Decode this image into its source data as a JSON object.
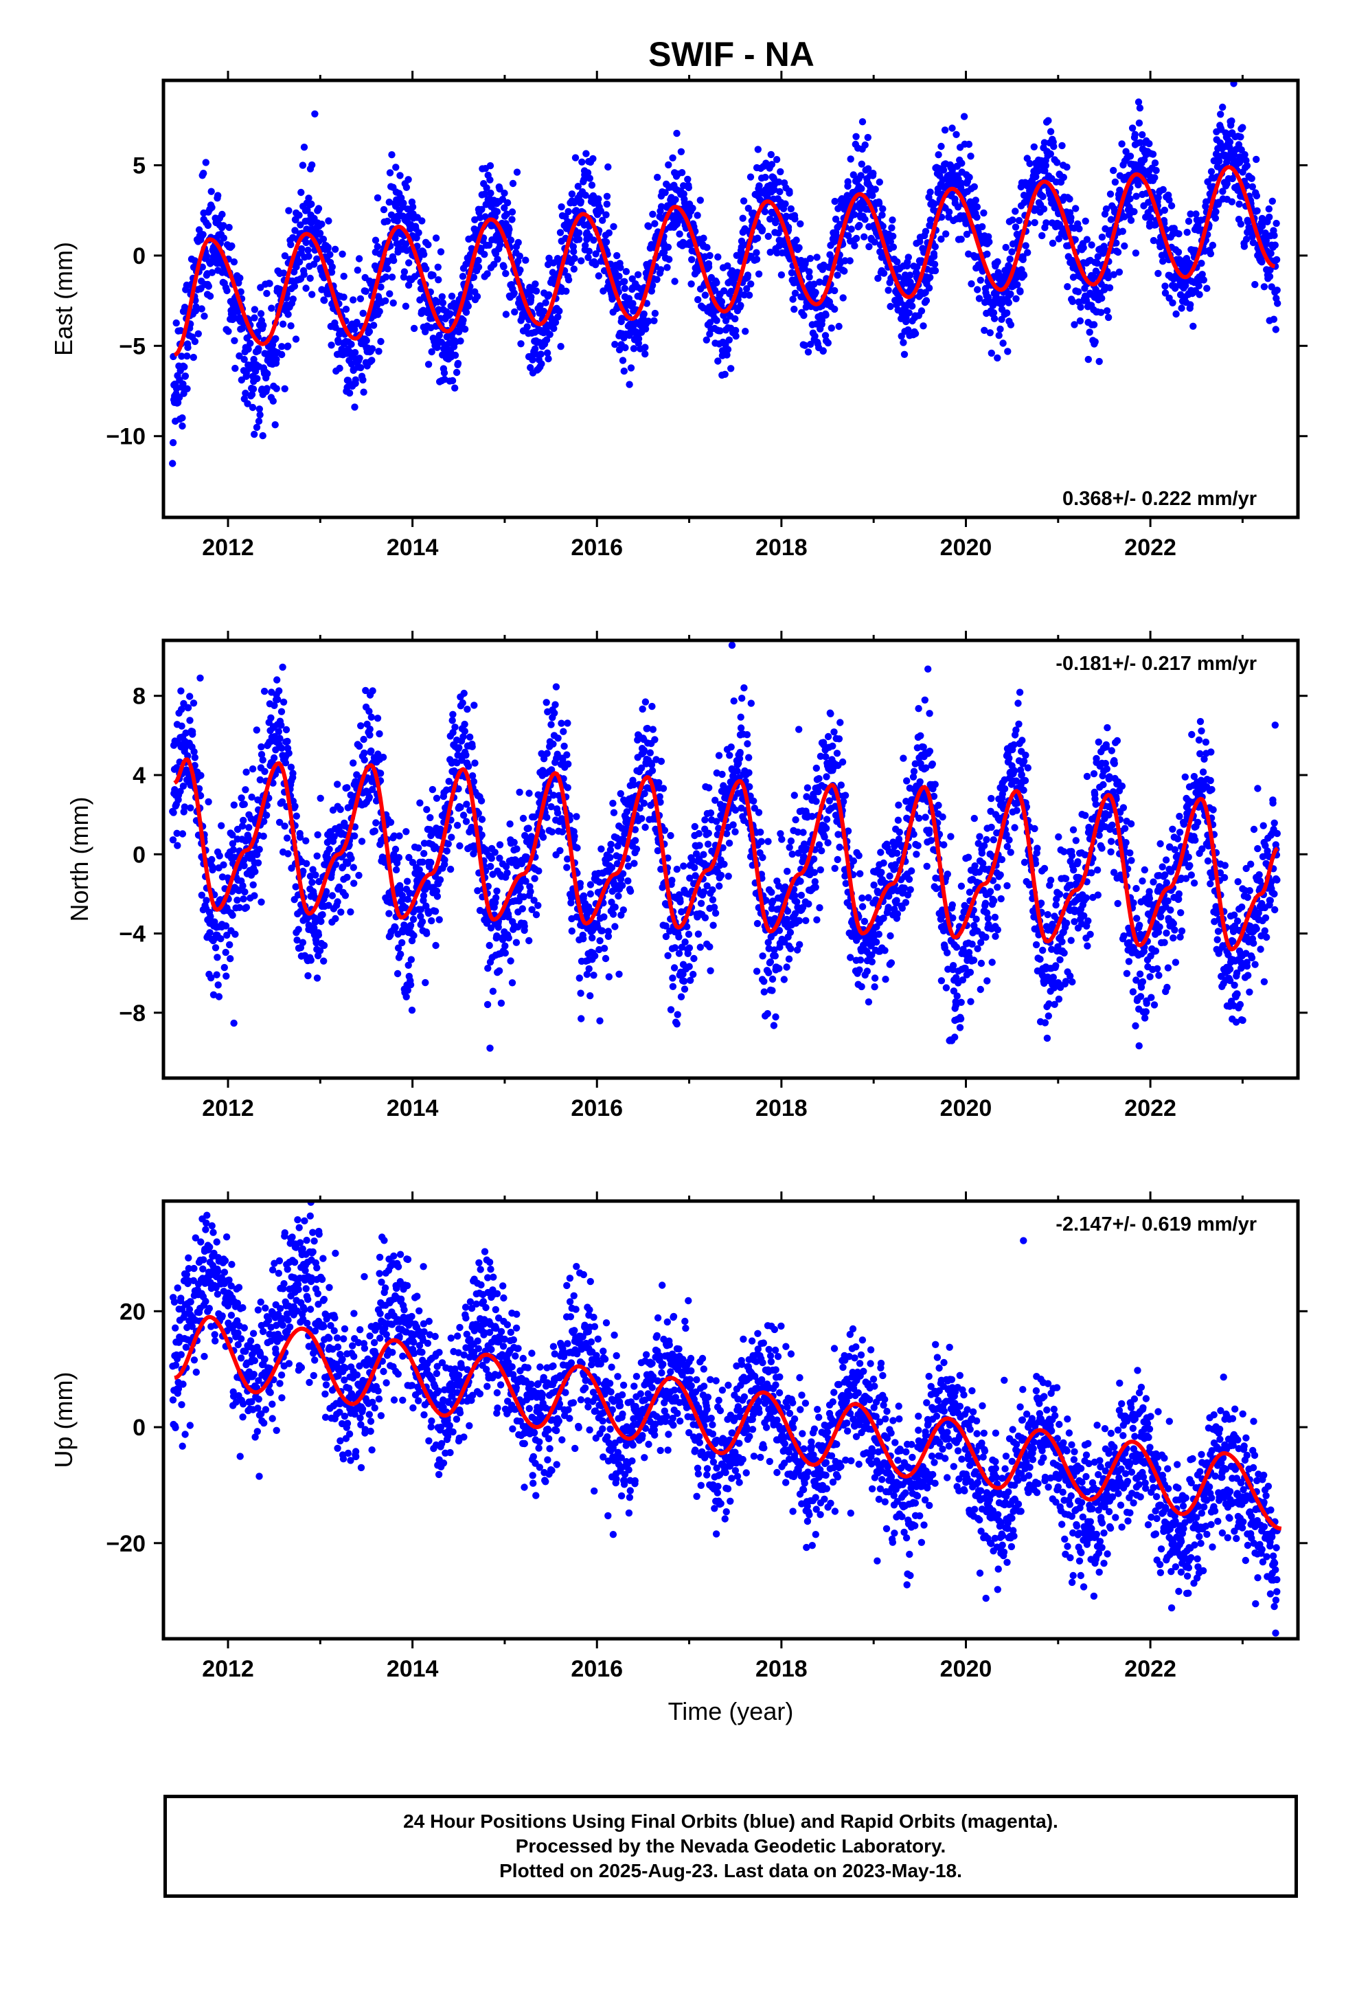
{
  "title": "SWIF - NA",
  "chart_data": [
    {
      "type": "scatter",
      "component": "East",
      "ylabel": "East (mm)",
      "xlabel": "",
      "xlim": [
        2011.3,
        2023.6
      ],
      "ylim": [
        -14.5,
        9.7
      ],
      "yticks": [
        5,
        0,
        -5,
        -10
      ],
      "ytick_labels": [
        "5",
        "0",
        "−5",
        "−10"
      ],
      "xticks": [
        2012,
        2014,
        2016,
        2018,
        2020,
        2022
      ],
      "xtick_labels": [
        "2012",
        "2014",
        "2016",
        "2018",
        "2020",
        "2022"
      ],
      "rate_label": "0.368+/- 0.222 mm/yr",
      "rate_position": "bottom-right",
      "series": [
        {
          "name": "24 Hour Positions (Final Orbits)",
          "color": "#0000ff",
          "style": "points",
          "amplitude": [
            4.6,
            4.2,
            3.6,
            3.0,
            2.8,
            2.7,
            2.6,
            2.6,
            2.7,
            2.7,
            2.8,
            2.9,
            3.0
          ],
          "noise": 1.3
        },
        {
          "name": "Model fit",
          "color": "#ff0000",
          "style": "line",
          "x": [
            2011.42,
            2011.8,
            2012.38,
            2012.85,
            2013.38,
            2013.85,
            2014.38,
            2014.85,
            2015.38,
            2015.85,
            2016.38,
            2016.85,
            2017.38,
            2017.85,
            2018.38,
            2018.85,
            2019.38,
            2019.85,
            2020.38,
            2020.85,
            2021.38,
            2021.85,
            2022.38,
            2022.85,
            2023.35
          ],
          "y": [
            -5.5,
            0.9,
            -4.9,
            1.2,
            -4.6,
            1.6,
            -4.2,
            2.0,
            -3.8,
            2.3,
            -3.5,
            2.7,
            -3.1,
            3.0,
            -2.7,
            3.4,
            -2.3,
            3.7,
            -1.9,
            4.1,
            -1.6,
            4.5,
            -1.2,
            4.9,
            -0.6
          ]
        }
      ]
    },
    {
      "type": "scatter",
      "component": "North",
      "ylabel": "North (mm)",
      "xlabel": "",
      "xlim": [
        2011.3,
        2023.6
      ],
      "ylim": [
        -11.3,
        10.8
      ],
      "yticks": [
        8,
        4,
        0,
        -4,
        -8
      ],
      "ytick_labels": [
        "8",
        "4",
        "0",
        "−4",
        "−8"
      ],
      "xticks": [
        2012,
        2014,
        2016,
        2018,
        2020,
        2022
      ],
      "xtick_labels": [
        "2012",
        "2014",
        "2016",
        "2018",
        "2020",
        "2022"
      ],
      "rate_label": "-0.181+/- 0.217 mm/yr",
      "rate_position": "top-right",
      "series": [
        {
          "name": "24 Hour Positions (Final Orbits)",
          "color": "#0000ff",
          "style": "points",
          "amplitude": [
            3.6,
            3.4,
            3.3,
            3.3,
            3.5,
            3.6,
            3.8,
            3.9,
            3.9,
            3.9,
            3.8,
            3.8,
            3.7
          ],
          "noise": 1.5
        },
        {
          "name": "Model fit",
          "color": "#ff0000",
          "style": "line",
          "x": [
            2011.42,
            2011.55,
            2011.88,
            2012.2,
            2012.55,
            2012.88,
            2013.2,
            2013.55,
            2013.88,
            2014.2,
            2014.55,
            2014.88,
            2015.2,
            2015.55,
            2015.88,
            2016.2,
            2016.55,
            2016.88,
            2017.2,
            2017.55,
            2017.88,
            2018.2,
            2018.55,
            2018.88,
            2019.2,
            2019.55,
            2019.88,
            2020.2,
            2020.55,
            2020.88,
            2021.2,
            2021.55,
            2021.88,
            2022.2,
            2022.55,
            2022.88,
            2023.2,
            2023.38
          ],
          "y": [
            3.6,
            4.8,
            -2.8,
            0.2,
            4.6,
            -3.0,
            0.0,
            4.5,
            -3.2,
            -1.0,
            4.3,
            -3.3,
            -1.0,
            4.1,
            -3.5,
            -1.0,
            3.9,
            -3.7,
            -0.8,
            3.7,
            -3.9,
            -1.0,
            3.5,
            -4.0,
            -1.5,
            3.4,
            -4.2,
            -1.5,
            3.2,
            -4.4,
            -1.8,
            3.0,
            -4.6,
            -1.7,
            2.8,
            -4.8,
            -2.0,
            0.3
          ]
        }
      ]
    },
    {
      "type": "scatter",
      "component": "Up",
      "ylabel": "Up (mm)",
      "xlabel": "Time (year)",
      "xlim": [
        2011.3,
        2023.6
      ],
      "ylim": [
        -36.5,
        39
      ],
      "yticks": [
        20,
        0,
        -20
      ],
      "ytick_labels": [
        "20",
        "0",
        "−20"
      ],
      "xticks": [
        2012,
        2014,
        2016,
        2018,
        2020,
        2022
      ],
      "xtick_labels": [
        "2012",
        "2014",
        "2016",
        "2018",
        "2020",
        "2022"
      ],
      "rate_label": "-2.147+/- 0.619 mm/yr",
      "rate_position": "top-right",
      "series": [
        {
          "name": "24 Hour Positions (Final Orbits)",
          "color": "#0000ff",
          "style": "points",
          "amplitude": [
            7.0,
            7.5,
            6.0,
            6.0,
            5.5,
            5.5,
            5.5,
            5.5,
            5.5,
            5.5,
            5.5,
            5.5,
            5.5
          ],
          "noise": 4.0
        },
        {
          "name": "Model fit",
          "color": "#ff0000",
          "style": "line",
          "x": [
            2011.42,
            2011.8,
            2012.3,
            2012.8,
            2013.35,
            2013.8,
            2014.35,
            2014.8,
            2015.35,
            2015.8,
            2016.35,
            2016.8,
            2017.35,
            2017.8,
            2018.35,
            2018.8,
            2019.35,
            2019.8,
            2020.35,
            2020.8,
            2021.35,
            2021.8,
            2022.35,
            2022.8,
            2023.42
          ],
          "y": [
            8.5,
            19.0,
            6.0,
            17.0,
            4.0,
            15.0,
            2.0,
            12.5,
            0.0,
            10.5,
            -2.0,
            8.5,
            -4.5,
            6.0,
            -6.5,
            4.0,
            -8.5,
            1.5,
            -10.5,
            -0.5,
            -12.5,
            -2.5,
            -15.0,
            -4.5,
            -17.5
          ]
        }
      ]
    }
  ],
  "caption": {
    "line1": "24 Hour Positions Using Final Orbits (blue) and Rapid Orbits (magenta).",
    "line2": "Processed by the Nevada Geodetic Laboratory.",
    "line3": "Plotted on 2025-Aug-23. Last data on 2023-May-18."
  }
}
